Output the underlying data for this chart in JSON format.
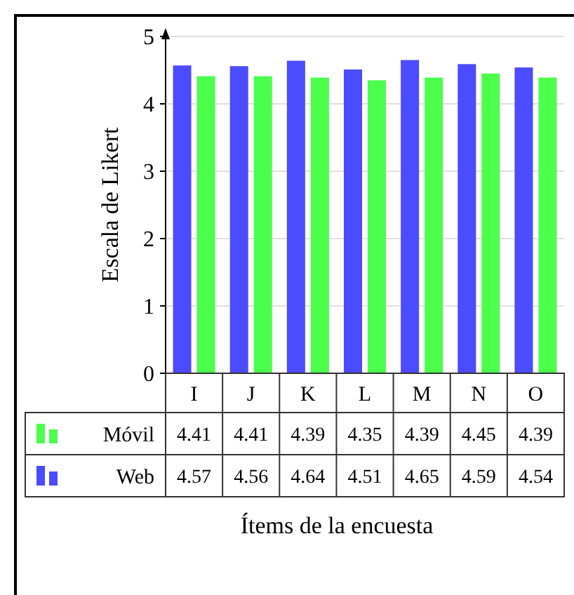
{
  "chart_data": {
    "type": "bar",
    "xlabel": "Ítems de la encuesta",
    "ylabel": "Escala de Likert",
    "categories": [
      "I",
      "J",
      "K",
      "L",
      "M",
      "N",
      "O"
    ],
    "series": [
      {
        "name": "Web",
        "color": "#4b4bff",
        "values": [
          4.57,
          4.56,
          4.64,
          4.51,
          4.65,
          4.59,
          4.54
        ]
      },
      {
        "name": "Móvil",
        "color": "#4bff4b",
        "values": [
          4.41,
          4.41,
          4.39,
          4.35,
          4.39,
          4.45,
          4.39
        ]
      }
    ],
    "ylim": [
      0,
      5
    ],
    "yticks": [
      0,
      1,
      2,
      3,
      4,
      5
    ],
    "grid": "y",
    "data_labels": true,
    "legend": "bottom"
  }
}
